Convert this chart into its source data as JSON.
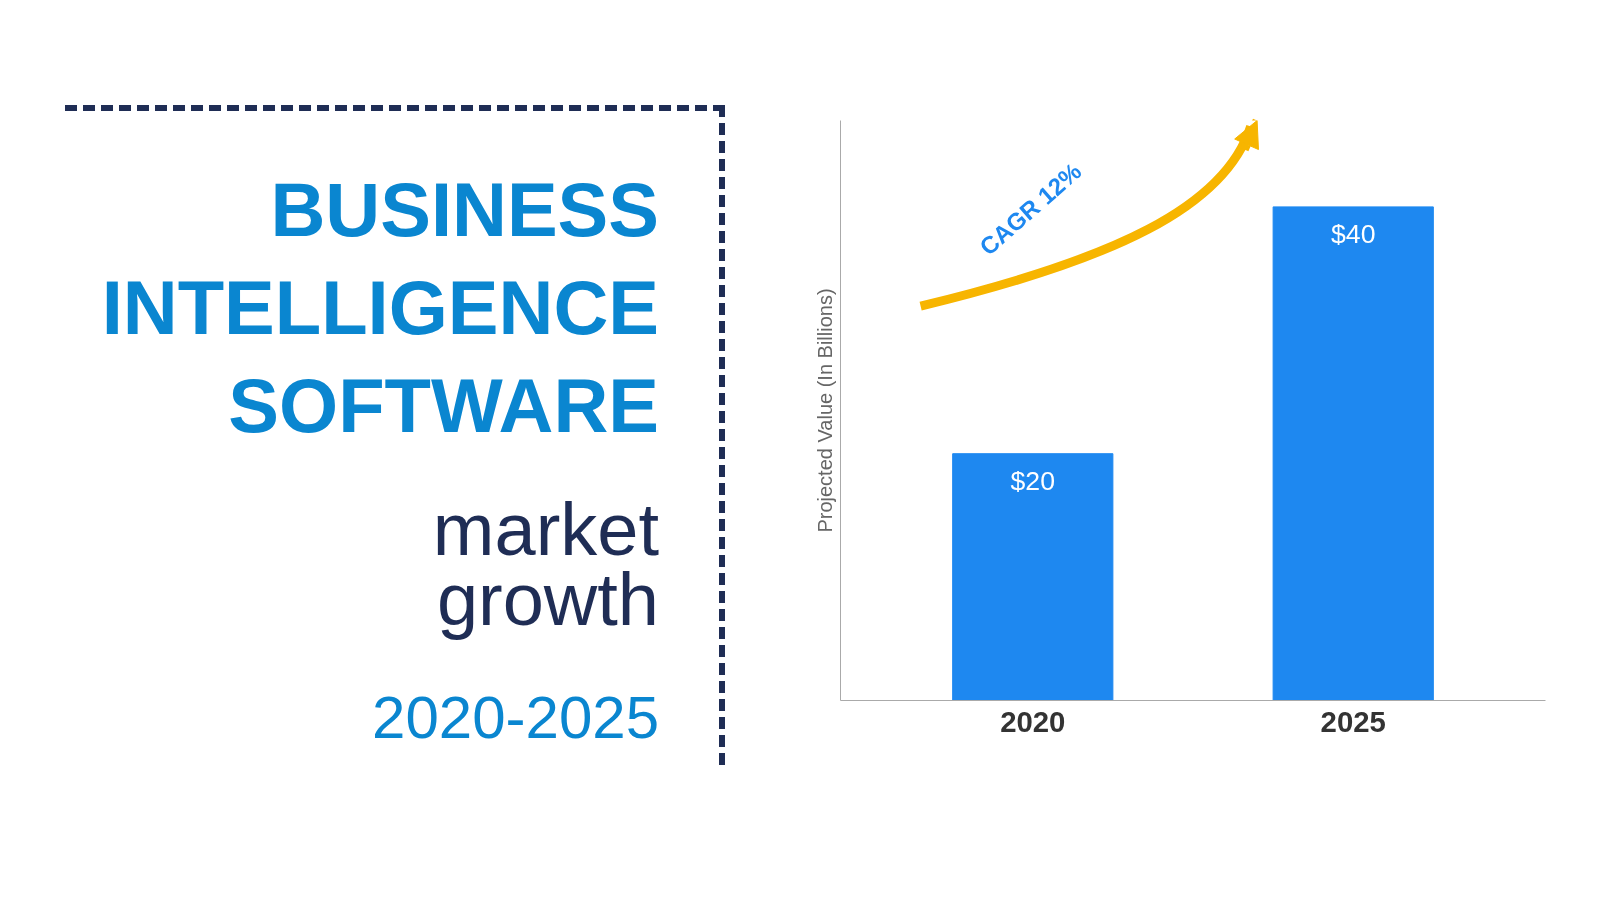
{
  "chart_data": {
    "type": "bar",
    "title": "BUSINESS INTELLIGENCE SOFTWARE",
    "subtitle": "market growth",
    "ylabel": "Projected Value (In Billions)",
    "annotations": [
      "2020-2025",
      "CAGR 12%"
    ],
    "categories": [
      "2020",
      "2025"
    ],
    "values": [
      20,
      40
    ],
    "value_labels": [
      "$20",
      "$40"
    ],
    "color": "#1e88f0",
    "ylim": [
      0,
      47
    ],
    "tick_labels": "x"
  }
}
